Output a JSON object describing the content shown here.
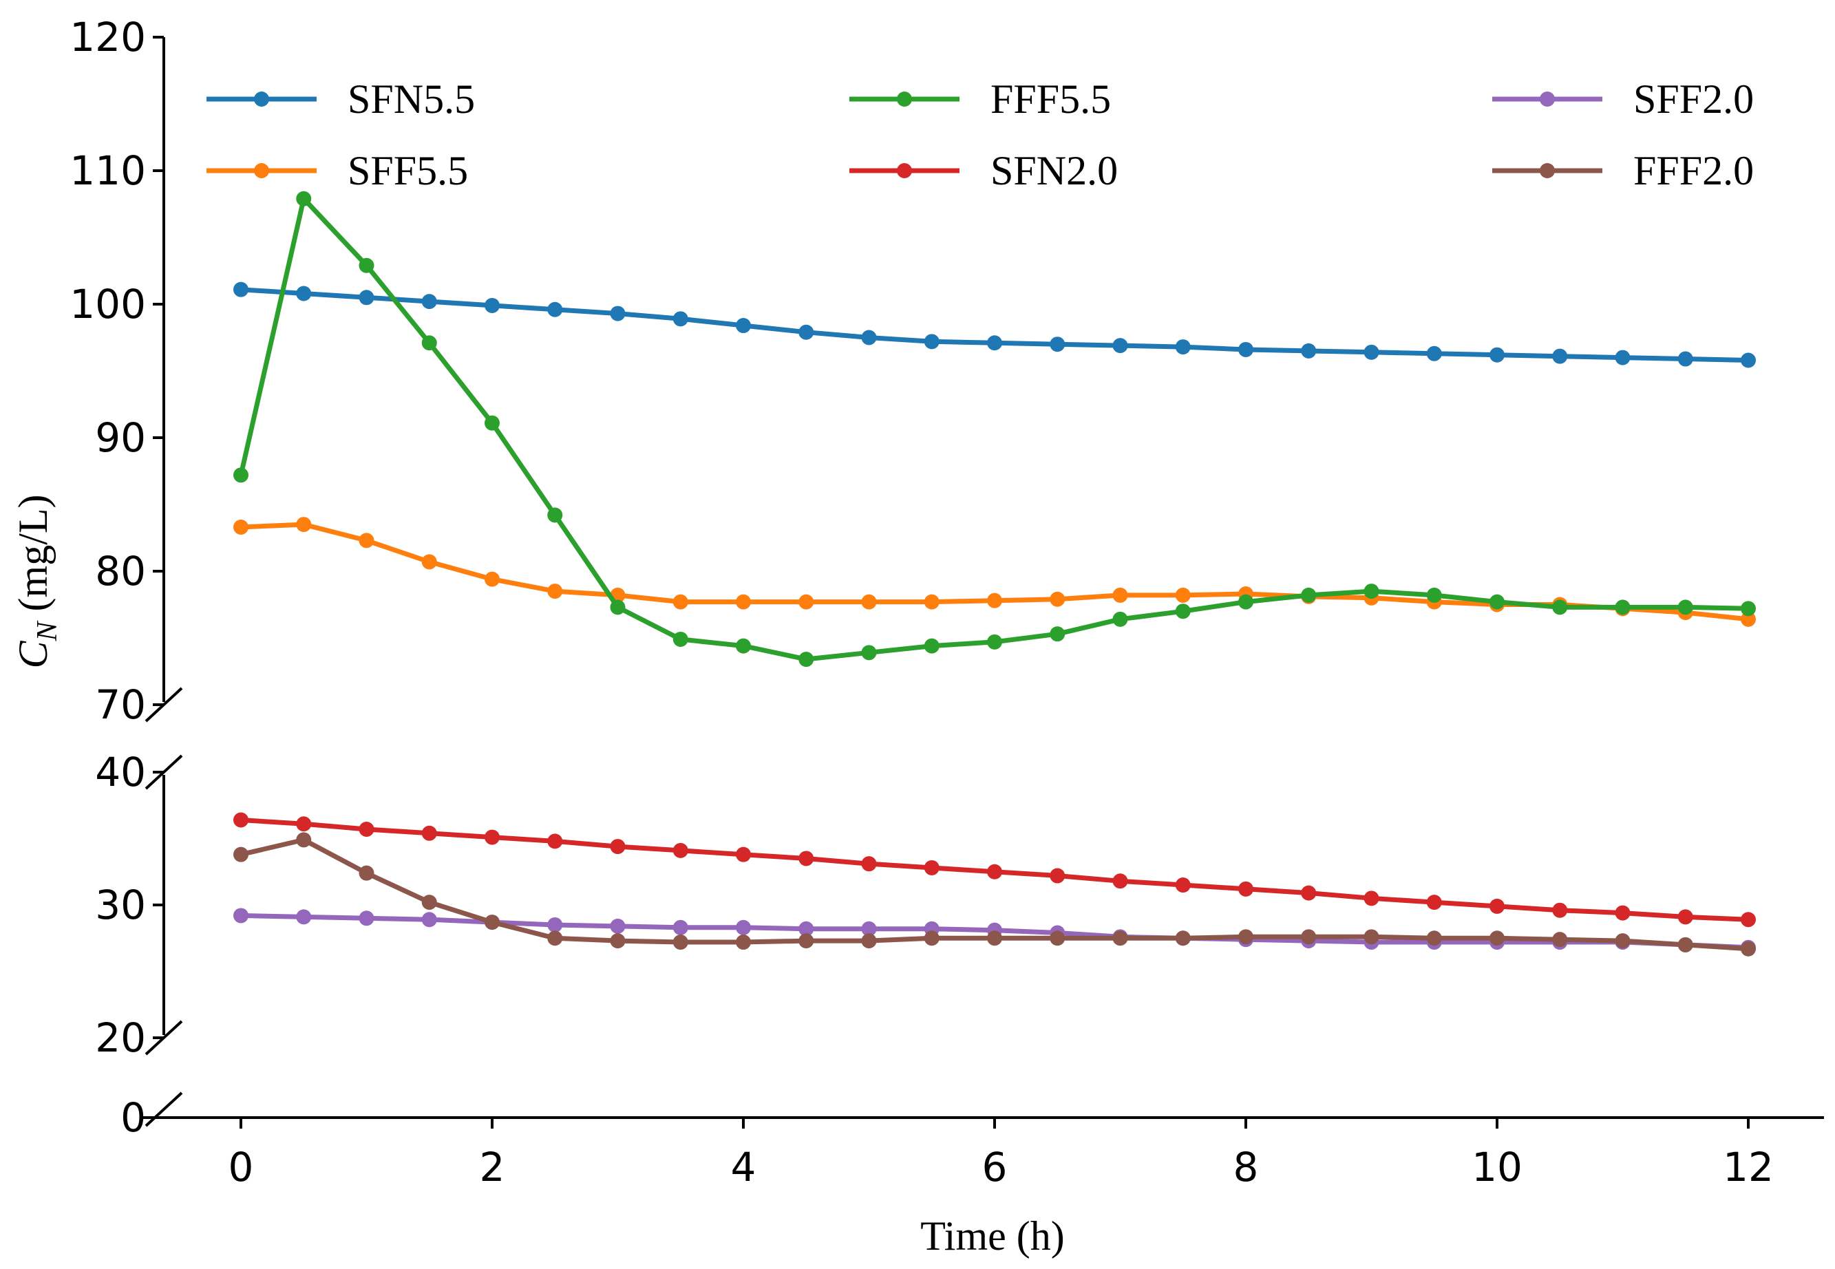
{
  "chart_data": {
    "type": "line",
    "title": "",
    "xlabel": "Time (h)",
    "ylabel_symbol": "C",
    "ylabel_subscript": "N",
    "ylabel_unit": " (mg/L)",
    "xlim": [
      -0.5,
      12.5
    ],
    "x_ticks": [
      0,
      2,
      4,
      6,
      8,
      10,
      12
    ],
    "y_segments": [
      {
        "name": "upper",
        "range": [
          70,
          120
        ],
        "ticks": [
          70,
          80,
          90,
          100,
          110,
          120
        ]
      },
      {
        "name": "middle",
        "range": [
          20,
          40
        ],
        "ticks": [
          20,
          30,
          40
        ]
      },
      {
        "name": "bottom",
        "range": [
          0,
          0
        ],
        "ticks": [
          0
        ]
      }
    ],
    "grid": false,
    "legend_position": "top",
    "x": [
      0,
      0.5,
      1,
      1.5,
      2,
      2.5,
      3,
      3.5,
      4,
      4.5,
      5,
      5.5,
      6,
      6.5,
      7,
      7.5,
      8,
      8.5,
      9,
      9.5,
      10,
      10.5,
      11,
      11.5,
      12
    ],
    "series": [
      {
        "name": "SFN5.5",
        "color": "#1f77b4",
        "segment": "upper",
        "values": [
          101.1,
          100.8,
          100.5,
          100.2,
          99.9,
          99.6,
          99.3,
          98.9,
          98.4,
          97.9,
          97.5,
          97.2,
          97.1,
          97.0,
          96.9,
          96.8,
          96.6,
          96.5,
          96.4,
          96.3,
          96.2,
          96.1,
          96.0,
          95.9,
          95.8
        ]
      },
      {
        "name": "SFF5.5",
        "color": "#ff7f0e",
        "segment": "upper",
        "values": [
          83.3,
          83.5,
          82.3,
          80.7,
          79.4,
          78.5,
          78.2,
          77.7,
          77.7,
          77.7,
          77.7,
          77.7,
          77.8,
          77.9,
          78.2,
          78.2,
          78.3,
          78.1,
          78.0,
          77.7,
          77.5,
          77.5,
          77.2,
          76.9,
          76.4
        ]
      },
      {
        "name": "FFF5.5",
        "color": "#2ca02c",
        "segment": "upper",
        "values": [
          87.2,
          107.9,
          102.9,
          97.1,
          91.1,
          84.2,
          77.3,
          74.9,
          74.4,
          73.4,
          73.9,
          74.4,
          74.7,
          75.3,
          76.4,
          77.0,
          77.7,
          78.2,
          78.5,
          78.2,
          77.7,
          77.3,
          77.3,
          77.3,
          77.2
        ]
      },
      {
        "name": "SFN2.0",
        "color": "#d62728",
        "segment": "middle",
        "values": [
          36.4,
          36.1,
          35.7,
          35.4,
          35.1,
          34.8,
          34.4,
          34.1,
          33.8,
          33.5,
          33.1,
          32.8,
          32.5,
          32.2,
          31.8,
          31.5,
          31.2,
          30.9,
          30.5,
          30.2,
          29.9,
          29.6,
          29.4,
          29.1,
          28.9
        ]
      },
      {
        "name": "SFF2.0",
        "color": "#9467bd",
        "segment": "middle",
        "values": [
          29.2,
          29.1,
          29.0,
          28.9,
          28.7,
          28.5,
          28.4,
          28.3,
          28.3,
          28.2,
          28.2,
          28.2,
          28.1,
          27.9,
          27.6,
          27.5,
          27.4,
          27.3,
          27.2,
          27.2,
          27.2,
          27.2,
          27.2,
          27.0,
          26.8
        ]
      },
      {
        "name": "FFF2.0",
        "color": "#8c564b",
        "segment": "middle",
        "values": [
          33.8,
          34.9,
          32.4,
          30.2,
          28.7,
          27.5,
          27.3,
          27.2,
          27.2,
          27.3,
          27.3,
          27.5,
          27.5,
          27.5,
          27.5,
          27.5,
          27.6,
          27.6,
          27.6,
          27.5,
          27.5,
          27.4,
          27.3,
          27.0,
          26.7
        ]
      }
    ]
  }
}
